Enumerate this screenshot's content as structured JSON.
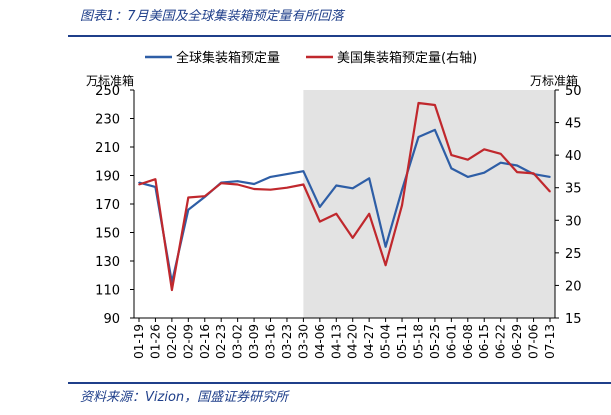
{
  "figure": {
    "title": "图表1：7月美国及全球集装箱预定量有所回落",
    "source": "资料来源：Vizion，国盛证券研究所"
  },
  "colors": {
    "heading": "#1f3f8a",
    "global_line": "#2e5ea6",
    "us_line": "#c0282d",
    "shade": "#e3e3e3"
  },
  "chart_data": {
    "type": "line",
    "categories": [
      "01-19",
      "01-26",
      "02-02",
      "02-09",
      "02-16",
      "02-23",
      "03-02",
      "03-09",
      "03-16",
      "03-23",
      "03-30",
      "04-06",
      "04-13",
      "04-20",
      "04-27",
      "05-04",
      "05-11",
      "05-18",
      "05-25",
      "06-01",
      "06-08",
      "06-15",
      "06-22",
      "06-29",
      "07-06",
      "07-13"
    ],
    "left_axis": {
      "unit": "万标准箱",
      "ylim": [
        90,
        250
      ],
      "ticks": [
        90,
        110,
        130,
        150,
        170,
        190,
        210,
        230,
        250
      ]
    },
    "right_axis": {
      "unit": "万标准箱",
      "ylim": [
        15,
        50
      ],
      "ticks": [
        15,
        20,
        25,
        30,
        35,
        40,
        45,
        50
      ]
    },
    "shaded_range": [
      "03-30",
      "07-13"
    ],
    "series": [
      {
        "name": "全球集装箱预定量",
        "axis": "left",
        "values": [
          185,
          182,
          115,
          166,
          175,
          185,
          186,
          184,
          189,
          191,
          193,
          168,
          183,
          181,
          188,
          140,
          180,
          217,
          222,
          195,
          189,
          192,
          199,
          197,
          191,
          189
        ]
      },
      {
        "name": "美国集装箱预定量(右轴)",
        "axis": "right",
        "values": [
          35.5,
          36.3,
          19.3,
          33.5,
          33.7,
          35.7,
          35.5,
          34.8,
          34.7,
          35.0,
          35.5,
          29.8,
          31.0,
          27.3,
          31.0,
          23.1,
          32.3,
          48.0,
          47.7,
          40.0,
          39.3,
          40.9,
          40.2,
          37.4,
          37.2,
          34.4
        ]
      }
    ]
  }
}
